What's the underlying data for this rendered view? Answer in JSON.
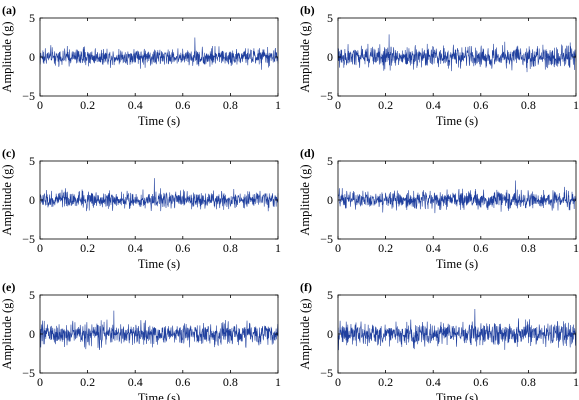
{
  "chart_data": [
    {
      "panel": "(a)",
      "type": "line",
      "xlabel": "Time (s)",
      "ylabel": "Amplitude (g)",
      "xlim": [
        0,
        1
      ],
      "ylim": [
        -5,
        5
      ],
      "xticks": [
        "0",
        "0.2",
        "0.4",
        "0.6",
        "0.8",
        "1"
      ],
      "yticks": [
        "5",
        "0",
        "−5"
      ],
      "grid": false,
      "series": [
        {
          "color": "#1f3f9e",
          "signal": "random vibration",
          "mean": 0,
          "std": 0.55,
          "peak": 2.5,
          "samples": 900
        }
      ]
    },
    {
      "panel": "(b)",
      "type": "line",
      "xlabel": "Time (s)",
      "ylabel": "Amplitude (g)",
      "xlim": [
        0,
        1
      ],
      "ylim": [
        -5,
        5
      ],
      "xticks": [
        "0",
        "0.2",
        "0.4",
        "0.6",
        "0.8",
        "1"
      ],
      "yticks": [
        "5",
        "0",
        "−5"
      ],
      "grid": false,
      "series": [
        {
          "color": "#1f3f9e",
          "signal": "random vibration",
          "mean": 0,
          "std": 0.7,
          "peak": 2.9,
          "samples": 900
        }
      ]
    },
    {
      "panel": "(c)",
      "type": "line",
      "xlabel": "Time (s)",
      "ylabel": "Amplitude (g)",
      "xlim": [
        0,
        1
      ],
      "ylim": [
        -5,
        5
      ],
      "xticks": [
        "0",
        "0.2",
        "0.4",
        "0.6",
        "0.8",
        "1"
      ],
      "yticks": [
        "5",
        "0",
        "−5"
      ],
      "grid": false,
      "series": [
        {
          "color": "#1f3f9e",
          "signal": "random vibration",
          "mean": 0,
          "std": 0.55,
          "peak": 2.8,
          "samples": 900
        }
      ]
    },
    {
      "panel": "(d)",
      "type": "line",
      "xlabel": "Time (s)",
      "ylabel": "Amplitude (g)",
      "xlim": [
        0,
        1
      ],
      "ylim": [
        -5,
        5
      ],
      "xticks": [
        "0",
        "0.2",
        "0.4",
        "0.6",
        "0.8",
        "1"
      ],
      "yticks": [
        "5",
        "0",
        "−5"
      ],
      "grid": false,
      "series": [
        {
          "color": "#1f3f9e",
          "signal": "random vibration",
          "mean": 0,
          "std": 0.58,
          "peak": 2.5,
          "samples": 900
        }
      ]
    },
    {
      "panel": "(e)",
      "type": "line",
      "xlabel": "Time (s)",
      "ylabel": "Amplitude (g)",
      "xlim": [
        0,
        1
      ],
      "ylim": [
        -5,
        5
      ],
      "xticks": [
        "0",
        "0.2",
        "0.4",
        "0.6",
        "0.8",
        "1"
      ],
      "yticks": [
        "5",
        "0",
        "−5"
      ],
      "grid": false,
      "series": [
        {
          "color": "#1f3f9e",
          "signal": "random vibration",
          "mean": 0,
          "std": 0.72,
          "peak": 3.0,
          "samples": 900
        }
      ]
    },
    {
      "panel": "(f)",
      "type": "line",
      "xlabel": "Time (s)",
      "ylabel": "Amplitude (g)",
      "xlim": [
        0,
        1
      ],
      "ylim": [
        -5,
        5
      ],
      "xticks": [
        "0",
        "0.2",
        "0.4",
        "0.6",
        "0.8",
        "1"
      ],
      "yticks": [
        "5",
        "0",
        "−5"
      ],
      "grid": false,
      "series": [
        {
          "color": "#1f3f9e",
          "signal": "random vibration",
          "mean": 0,
          "std": 0.75,
          "peak": 3.2,
          "samples": 900
        }
      ]
    }
  ]
}
